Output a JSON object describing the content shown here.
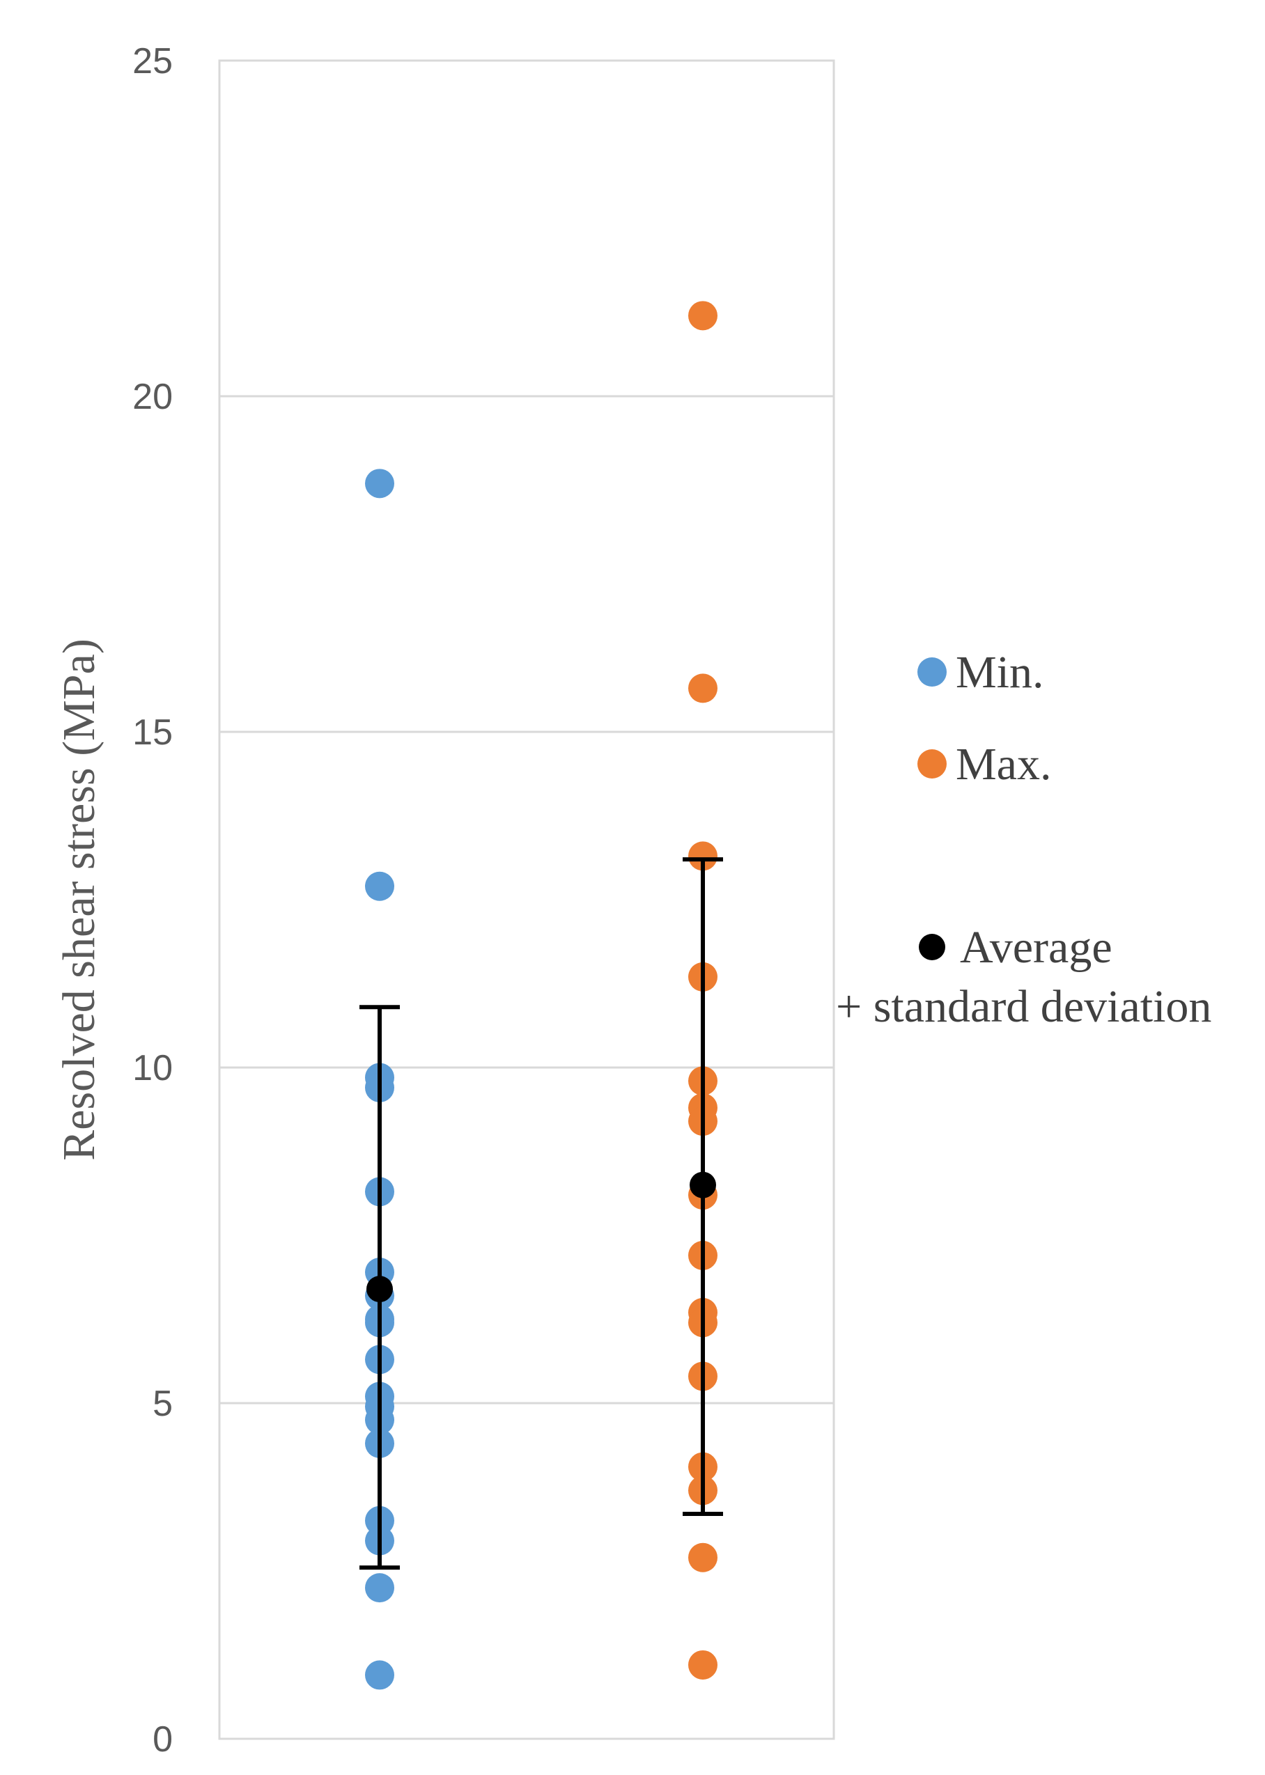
{
  "chart_data": {
    "type": "scatter",
    "title": "",
    "xlabel": "",
    "ylabel": "Resolved shear stress (MPa)",
    "ylim": [
      0,
      25
    ],
    "y_ticks": [
      "0",
      "5",
      "10",
      "15",
      "20",
      "25"
    ],
    "grid": true,
    "legend_position": "right",
    "series": [
      {
        "name": "Min.",
        "color": "#5b9bd5",
        "category": 1,
        "values": [
          18.7,
          12.7,
          9.85,
          9.7,
          8.15,
          6.95,
          6.6,
          6.25,
          6.2,
          5.65,
          5.1,
          4.95,
          4.75,
          4.4,
          3.25,
          2.95,
          2.25,
          0.95
        ]
      },
      {
        "name": "Max.",
        "color": "#ed7d31",
        "category": 2,
        "values": [
          21.2,
          15.65,
          13.15,
          11.35,
          9.8,
          9.4,
          9.2,
          8.1,
          7.2,
          6.35,
          6.2,
          5.4,
          4.05,
          3.7,
          2.7,
          1.1
        ]
      }
    ],
    "average": {
      "name": "Average",
      "name_line2": "+ standard deviation",
      "color": "#000000",
      "points": [
        {
          "category": 1,
          "mean": 6.7,
          "lower": 2.55,
          "upper": 10.9
        },
        {
          "category": 2,
          "mean": 8.25,
          "lower": 3.35,
          "upper": 13.1
        }
      ]
    }
  }
}
